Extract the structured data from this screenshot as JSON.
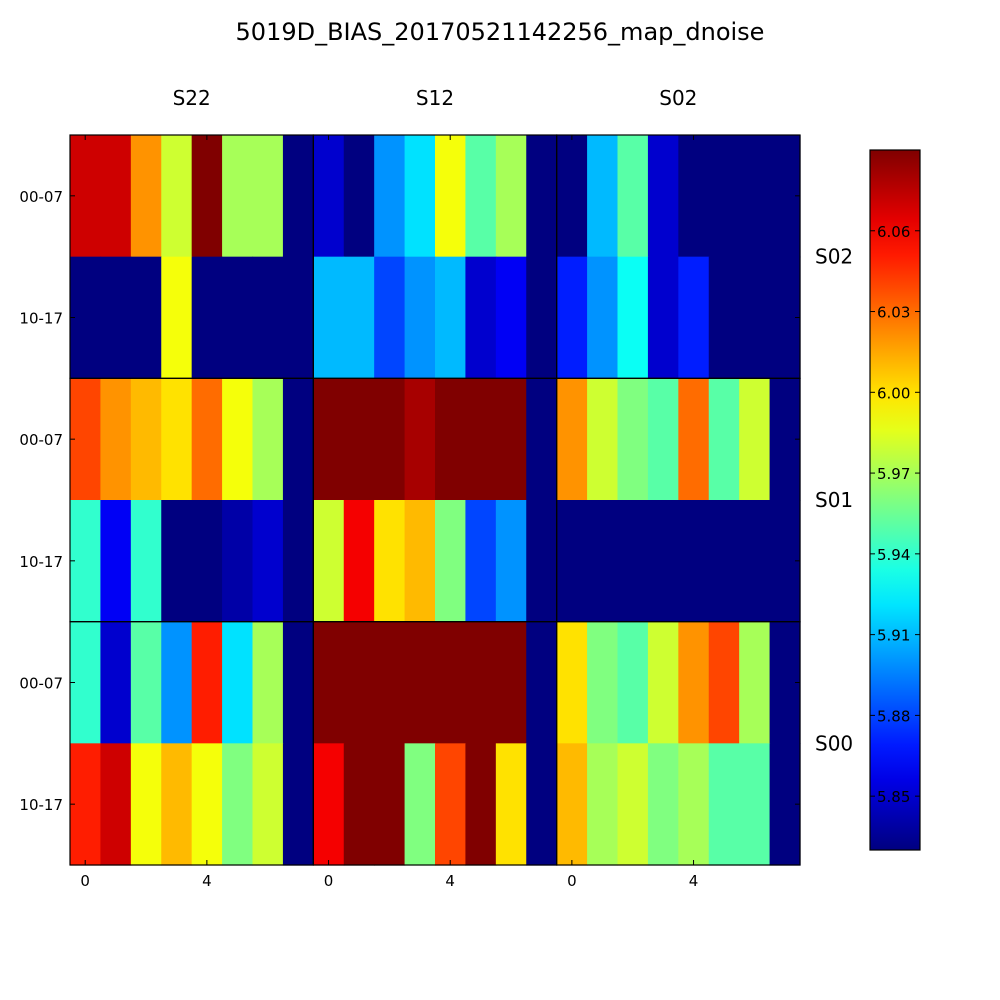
{
  "chart_data": {
    "type": "heatmap",
    "title": "5019D_BIAS_20170521142256_map_dnoise",
    "panel_columns": [
      "S22",
      "S12",
      "S02"
    ],
    "panel_rows": [
      "S02",
      "S01",
      "S00"
    ],
    "row_tick_labels": [
      "00-07",
      "10-17"
    ],
    "x_tick_values": [
      0,
      4
    ],
    "colorbar": {
      "colormap": "jet",
      "range": [
        5.83,
        6.09
      ],
      "ticks": [
        5.85,
        5.88,
        5.91,
        5.94,
        5.97,
        6.0,
        6.03,
        6.06
      ]
    },
    "cells": [
      [
        [
          [
            6.07,
            6.07,
            6.02,
            5.98,
            6.09,
            5.97,
            5.97,
            5.83
          ],
          [
            5.83,
            5.83,
            5.83,
            5.99,
            5.83,
            5.83,
            5.83,
            5.83
          ]
        ],
        [
          [
            5.85,
            5.83,
            5.9,
            5.92,
            5.99,
            5.95,
            5.97,
            5.83
          ],
          [
            5.91,
            5.91,
            5.88,
            5.9,
            5.91,
            5.85,
            5.86,
            5.83
          ]
        ],
        [
          [
            5.83,
            5.91,
            5.95,
            5.85,
            5.83,
            5.83,
            5.83,
            5.83
          ],
          [
            5.87,
            5.9,
            5.93,
            5.85,
            5.87,
            5.83,
            5.83,
            5.83
          ]
        ]
      ],
      [
        [
          [
            6.04,
            6.02,
            6.01,
            6.0,
            6.03,
            5.99,
            5.97,
            5.83
          ],
          [
            5.94,
            5.86,
            5.94,
            5.83,
            5.83,
            5.84,
            5.85,
            5.83
          ]
        ],
        [
          [
            6.09,
            6.09,
            6.09,
            6.08,
            6.09,
            6.09,
            6.09,
            5.83
          ],
          [
            5.98,
            6.06,
            6.0,
            6.01,
            5.96,
            5.88,
            5.9,
            5.83
          ]
        ],
        [
          [
            6.02,
            5.98,
            5.96,
            5.95,
            6.03,
            5.95,
            5.98,
            5.83
          ],
          [
            5.83,
            5.83,
            5.83,
            5.83,
            5.83,
            5.83,
            5.83,
            5.83
          ]
        ]
      ],
      [
        [
          [
            5.94,
            5.85,
            5.95,
            5.9,
            6.05,
            5.92,
            5.97,
            5.83
          ],
          [
            6.05,
            6.07,
            5.99,
            6.01,
            5.99,
            5.96,
            5.98,
            5.83
          ]
        ],
        [
          [
            6.09,
            6.09,
            6.09,
            6.09,
            6.09,
            6.09,
            6.09,
            5.83
          ],
          [
            6.06,
            6.09,
            6.09,
            5.96,
            6.04,
            6.09,
            6.0,
            5.83
          ]
        ],
        [
          [
            6.0,
            5.96,
            5.95,
            5.98,
            6.02,
            6.04,
            5.97,
            5.83
          ],
          [
            6.01,
            5.97,
            5.98,
            5.96,
            5.97,
            5.95,
            5.95,
            5.83
          ]
        ]
      ]
    ]
  }
}
